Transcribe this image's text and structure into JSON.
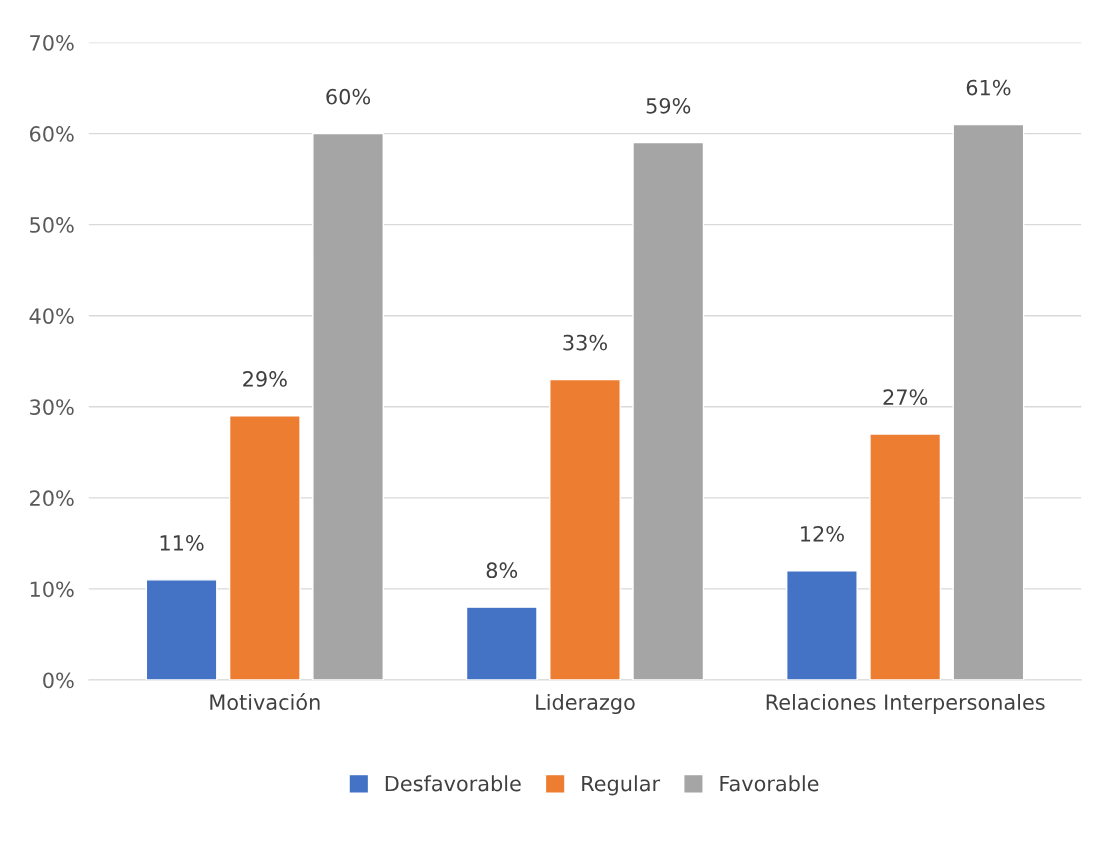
{
  "chart_data": {
    "type": "bar",
    "categories": [
      "Motivación",
      "Liderazgo",
      "Relaciones Interpersonales"
    ],
    "series": [
      {
        "name": "Desfavorable",
        "color": "#4472c4",
        "values": [
          11,
          8,
          12
        ],
        "value_labels": [
          "11%",
          "8%",
          "12%"
        ]
      },
      {
        "name": "Regular",
        "color": "#ed7d31",
        "values": [
          29,
          33,
          27
        ],
        "value_labels": [
          "29%",
          "33%",
          "27%"
        ]
      },
      {
        "name": "Favorable",
        "color": "#a5a5a5",
        "values": [
          60,
          59,
          61
        ],
        "value_labels": [
          "60%",
          "59%",
          "61%"
        ]
      }
    ],
    "ylim": [
      0,
      70
    ],
    "yticks": [
      {
        "value": 0,
        "label": "0%"
      },
      {
        "value": 10,
        "label": "10%"
      },
      {
        "value": 20,
        "label": "20%"
      },
      {
        "value": 30,
        "label": "30%"
      },
      {
        "value": 40,
        "label": "40%"
      },
      {
        "value": 50,
        "label": "50%"
      },
      {
        "value": 60,
        "label": "60%"
      },
      {
        "value": 70,
        "label": "70%"
      }
    ],
    "grid": "y",
    "legend": "bottom"
  }
}
